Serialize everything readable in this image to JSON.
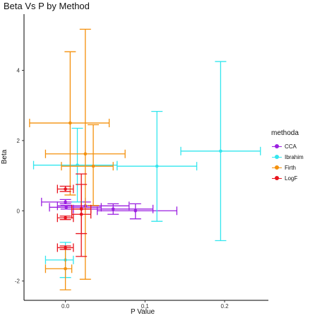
{
  "chart_data": {
    "type": "scatter",
    "title": "Beta Vs P by Method",
    "xlabel": "P Value",
    "ylabel": "Beta",
    "xlim": [
      -0.052,
      0.255
    ],
    "ylim": [
      -2.55,
      5.6
    ],
    "x_ticks": [
      0.0,
      0.1,
      0.2
    ],
    "x_tick_labels": [
      "0.0",
      "0.1",
      "0.2"
    ],
    "y_ticks": [
      -2,
      0,
      2,
      4
    ],
    "y_tick_labels": [
      "-2",
      "0",
      "2",
      "4"
    ],
    "grid": false,
    "legend_title": "methoda",
    "legend_position": "right",
    "series": [
      {
        "name": "CCA",
        "color": "#9b1fe0",
        "points": [
          {
            "x": 0.0,
            "y": 0.25,
            "ylo": 0.2,
            "yhi": 0.32,
            "xlo": -0.03,
            "xhi": 0.025
          },
          {
            "x": 0.001,
            "y": 0.1,
            "ylo": 0.05,
            "yhi": 0.15,
            "xlo": -0.02,
            "xhi": 0.045
          },
          {
            "x": 0.025,
            "y": 0.14,
            "ylo": 0.05,
            "yhi": 0.25,
            "xlo": -0.01,
            "xhi": 0.08
          },
          {
            "x": 0.06,
            "y": 0.05,
            "ylo": -0.1,
            "yhi": 0.2,
            "xlo": 0.01,
            "xhi": 0.11
          },
          {
            "x": 0.088,
            "y": 0.0,
            "ylo": -0.23,
            "yhi": 0.2,
            "xlo": 0.04,
            "xhi": 0.14
          }
        ]
      },
      {
        "name": "Ibrahim",
        "color": "#33e6ee",
        "points": [
          {
            "x": 0.0,
            "y": -1.4,
            "ylo": -1.9,
            "yhi": -0.9,
            "xlo": -0.025,
            "xhi": 0.01
          },
          {
            "x": 0.015,
            "y": 1.3,
            "ylo": 0.25,
            "yhi": 2.35,
            "xlo": -0.04,
            "xhi": 0.065
          },
          {
            "x": 0.115,
            "y": 1.27,
            "ylo": -0.3,
            "yhi": 2.83,
            "xlo": 0.065,
            "xhi": 0.165
          },
          {
            "x": 0.195,
            "y": 1.7,
            "ylo": -0.85,
            "yhi": 4.25,
            "xlo": 0.145,
            "xhi": 0.245
          }
        ]
      },
      {
        "name": "Firth",
        "color": "#f4900c",
        "points": [
          {
            "x": 0.0,
            "y": -1.65,
            "ylo": -2.25,
            "yhi": -1.05,
            "xlo": -0.025,
            "xhi": 0.008
          },
          {
            "x": 0.006,
            "y": 2.5,
            "ylo": 0.45,
            "yhi": 4.53,
            "xlo": -0.045,
            "xhi": 0.055
          },
          {
            "x": 0.025,
            "y": 1.62,
            "ylo": -1.95,
            "yhi": 5.17,
            "xlo": -0.025,
            "xhi": 0.075
          },
          {
            "x": 0.035,
            "y": 1.27,
            "ylo": 0.15,
            "yhi": 2.45,
            "xlo": -0.005,
            "xhi": 0.06
          }
        ]
      },
      {
        "name": "LogF",
        "color": "#e8131c",
        "points": [
          {
            "x": 0.0,
            "y": 0.62,
            "ylo": 0.55,
            "yhi": 0.7,
            "xlo": -0.01,
            "xhi": 0.01
          },
          {
            "x": 0.0,
            "y": -0.2,
            "ylo": -0.25,
            "yhi": -0.15,
            "xlo": -0.01,
            "xhi": 0.01
          },
          {
            "x": 0.0,
            "y": -1.05,
            "ylo": -1.1,
            "yhi": -1.0,
            "xlo": -0.01,
            "xhi": 0.01
          },
          {
            "x": 0.02,
            "y": 0.05,
            "ylo": -0.65,
            "yhi": 1.05,
            "xlo": 0.008,
            "xhi": 0.032
          },
          {
            "x": 0.02,
            "y": -0.1,
            "ylo": -1.3,
            "yhi": 0.75,
            "xlo": 0.008,
            "xhi": 0.032
          }
        ]
      }
    ]
  }
}
